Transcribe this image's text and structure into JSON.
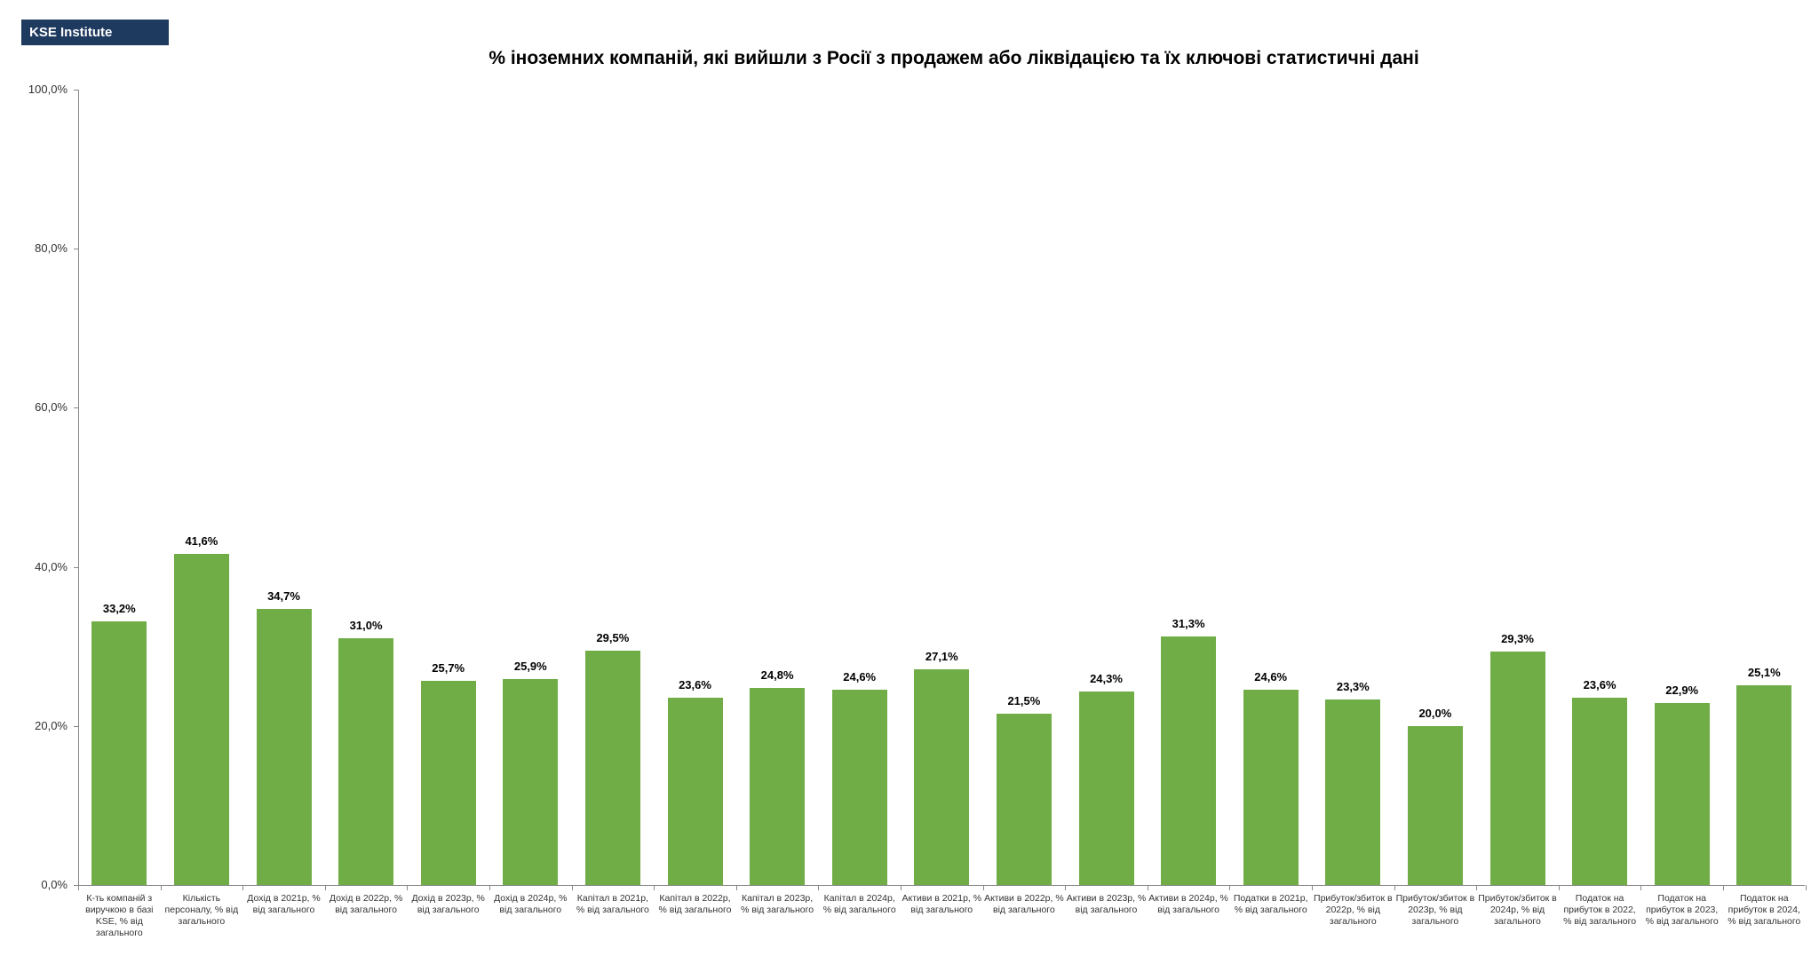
{
  "logo": "KSE Institute",
  "chart_data": {
    "type": "bar",
    "title": "% іноземних компаній, які вийшли з Росії з продажем або ліквідацією та їх ключові статистичні  дані",
    "xlabel": "",
    "ylabel": "",
    "ylim": [
      0,
      100
    ],
    "yticks": [
      0,
      20,
      40,
      60,
      80,
      100
    ],
    "ytick_labels": [
      "0,0%",
      "20,0%",
      "40,0%",
      "60,0%",
      "80,0%",
      "100,0%"
    ],
    "color": "#70ad47",
    "categories": [
      "К-ть компаній з виручкою в базі KSE, % від загального",
      "Кількість персоналу, % від загального",
      "Дохід в 2021р, % від загального",
      "Дохід в 2022р, % від загального",
      "Дохід в 2023р, % від загального",
      "Дохід в 2024р, % від загального",
      "Капітал в 2021р, % від загального",
      "Капітал в 2022р, % від загального",
      "Капітал в 2023р, % від загального",
      "Капітал в 2024р, % від загального",
      "Активи в 2021р, % від загального",
      "Активи в 2022р, % від загального",
      "Активи в 2023р, % від загального",
      "Активи в 2024р, % від загального",
      "Податки в 2021р, % від загального",
      "Прибуток/збиток в 2022р, % від загального",
      "Прибуток/збиток в 2023р, % від загального",
      "Прибуток/збиток в 2024р, % від загального",
      "Податок на прибуток в 2022, % від загального",
      "Податок на прибуток в 2023, % від загального",
      "Податок на прибуток в 2024, % від загального"
    ],
    "values": [
      33.2,
      41.6,
      34.7,
      31.0,
      25.7,
      25.9,
      29.5,
      23.6,
      24.8,
      24.6,
      27.1,
      21.5,
      24.3,
      31.3,
      24.6,
      23.3,
      20.0,
      29.3,
      23.6,
      22.9,
      25.1
    ],
    "data_labels": [
      "33,2%",
      "41,6%",
      "34,7%",
      "31,0%",
      "25,7%",
      "25,9%",
      "29,5%",
      "23,6%",
      "24,8%",
      "24,6%",
      "27,1%",
      "21,5%",
      "24,3%",
      "31,3%",
      "24,6%",
      "23,3%",
      "20,0%",
      "29,3%",
      "23,6%",
      "22,9%",
      "25,1%"
    ]
  }
}
